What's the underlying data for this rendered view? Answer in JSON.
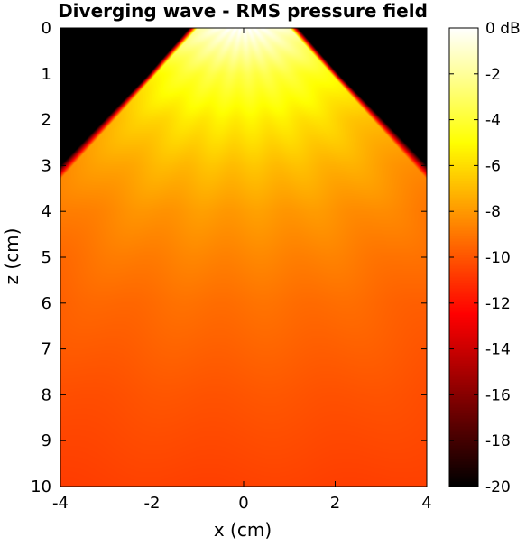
{
  "chart_data": {
    "type": "heatmap",
    "title": "Diverging wave - RMS pressure field",
    "xlabel": "x (cm)",
    "ylabel": "z (cm)",
    "xlim": [
      -4,
      4
    ],
    "ylim": [
      0,
      10
    ],
    "y_reversed": true,
    "x_ticks": [
      "-4",
      "-2",
      "0",
      "2",
      "4"
    ],
    "y_ticks": [
      "0",
      "1",
      "2",
      "3",
      "4",
      "5",
      "6",
      "7",
      "8",
      "9",
      "10"
    ],
    "colormap": "hot",
    "color_range": [
      -20,
      0
    ],
    "colorbar_ticks": [
      "0 dB",
      "-2",
      "-4",
      "-6",
      "-8",
      "-10",
      "-12",
      "-14",
      "-16",
      "-18",
      "-20"
    ],
    "aperture_halfwidth_cm": 1,
    "beam_edge_slope": 0.41,
    "samples": {
      "z_cm": [
        0,
        1,
        2,
        3,
        4,
        5,
        6,
        8,
        10
      ],
      "center_db": [
        0,
        -3.5,
        -5.4,
        -6.8,
        -7.9,
        -8.6,
        -9.2,
        -10.0,
        -10.6
      ],
      "edge_db": [
        -1.5,
        -5.0,
        -7.0,
        -8.3,
        -9.3,
        -10.0,
        -10.5,
        -11.0,
        -11.2
      ]
    }
  }
}
